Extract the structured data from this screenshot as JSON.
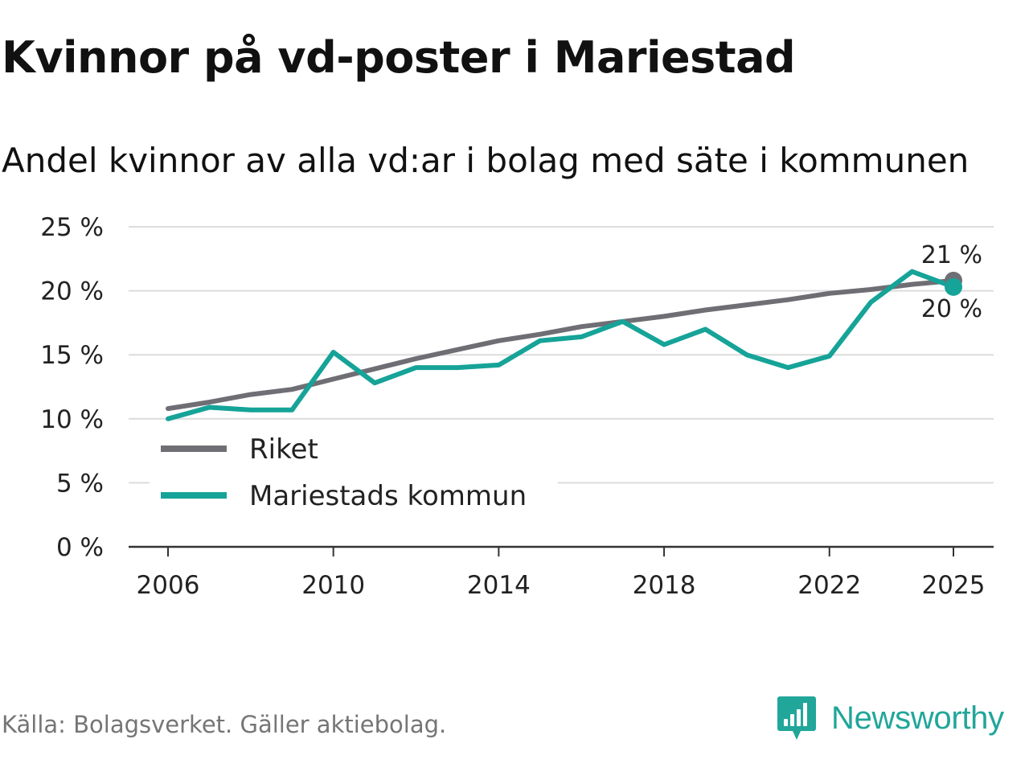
{
  "title": "Kvinnor på vd-poster i Mariestad",
  "subtitle": "Andel kvinnor av alla vd:ar i bolag med säte i kommunen",
  "source": "Källa: Bolagsverket. Gäller aktiebolag.",
  "brand": {
    "name": "Newsworthy",
    "color": "#21a69a"
  },
  "chart_data": {
    "type": "line",
    "title": "Kvinnor på vd-poster i Mariestad",
    "subtitle": "Andel kvinnor av alla vd:ar i bolag med säte i kommunen",
    "xlabel": "",
    "ylabel": "",
    "ylim": [
      0,
      25
    ],
    "xlim": [
      2006,
      2025
    ],
    "y_ticks": [
      0,
      5,
      10,
      15,
      20,
      25
    ],
    "y_tick_labels": [
      "0 %",
      "5 %",
      "10 %",
      "15 %",
      "20 %",
      "25 %"
    ],
    "x_ticks": [
      2006,
      2010,
      2014,
      2018,
      2022,
      2025
    ],
    "x_tick_labels": [
      "2006",
      "2010",
      "2014",
      "2018",
      "2022",
      "2025"
    ],
    "grid": true,
    "legend_position": "bottom-left",
    "x": [
      2006,
      2007,
      2008,
      2009,
      2010,
      2011,
      2012,
      2013,
      2014,
      2015,
      2016,
      2017,
      2018,
      2019,
      2020,
      2021,
      2022,
      2023,
      2024,
      2025
    ],
    "series": [
      {
        "name": "Riket",
        "color": "#6f6e75",
        "values": [
          10.8,
          11.3,
          11.9,
          12.3,
          13.1,
          13.9,
          14.7,
          15.4,
          16.1,
          16.6,
          17.2,
          17.6,
          18.0,
          18.5,
          18.9,
          19.3,
          19.8,
          20.1,
          20.5,
          20.8
        ],
        "end_label": "21 %"
      },
      {
        "name": "Mariestads kommun",
        "color": "#16a398",
        "values": [
          10.0,
          10.9,
          10.7,
          10.7,
          15.2,
          12.8,
          14.0,
          14.0,
          14.2,
          16.1,
          16.4,
          17.6,
          15.8,
          17.0,
          15.0,
          14.0,
          14.9,
          19.1,
          21.5,
          20.3
        ],
        "end_label": "20 %"
      }
    ]
  }
}
